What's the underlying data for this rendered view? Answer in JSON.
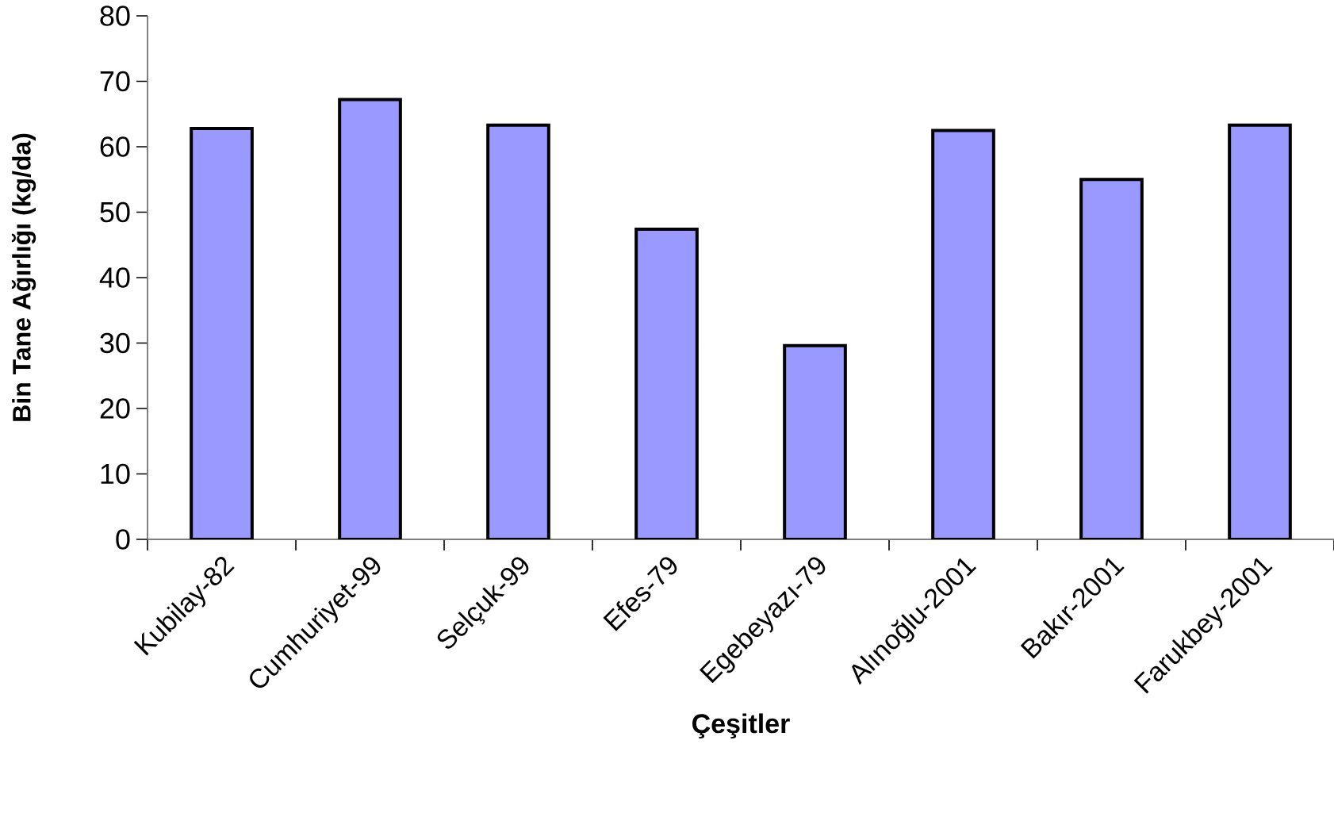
{
  "chart_data": {
    "type": "bar",
    "xlabel": "Çeşitler",
    "ylabel": "Bin Tane Ağırlığı (kg/da)",
    "categories": [
      "Kubilay-82",
      "Cumhuriyet-99",
      "Selçuk-99",
      "Efes-79",
      "Egebeyazı-79",
      "Alınoğlu-2001",
      "Bakır-2001",
      "Farukbey-2001"
    ],
    "values": [
      62.8,
      67.2,
      63.3,
      47.4,
      29.6,
      62.5,
      55.0,
      63.3
    ],
    "color": "#9999ff",
    "ylim": [
      0,
      80
    ],
    "yticks": [
      0,
      10,
      20,
      30,
      40,
      50,
      60,
      70,
      80
    ],
    "grid": false
  }
}
